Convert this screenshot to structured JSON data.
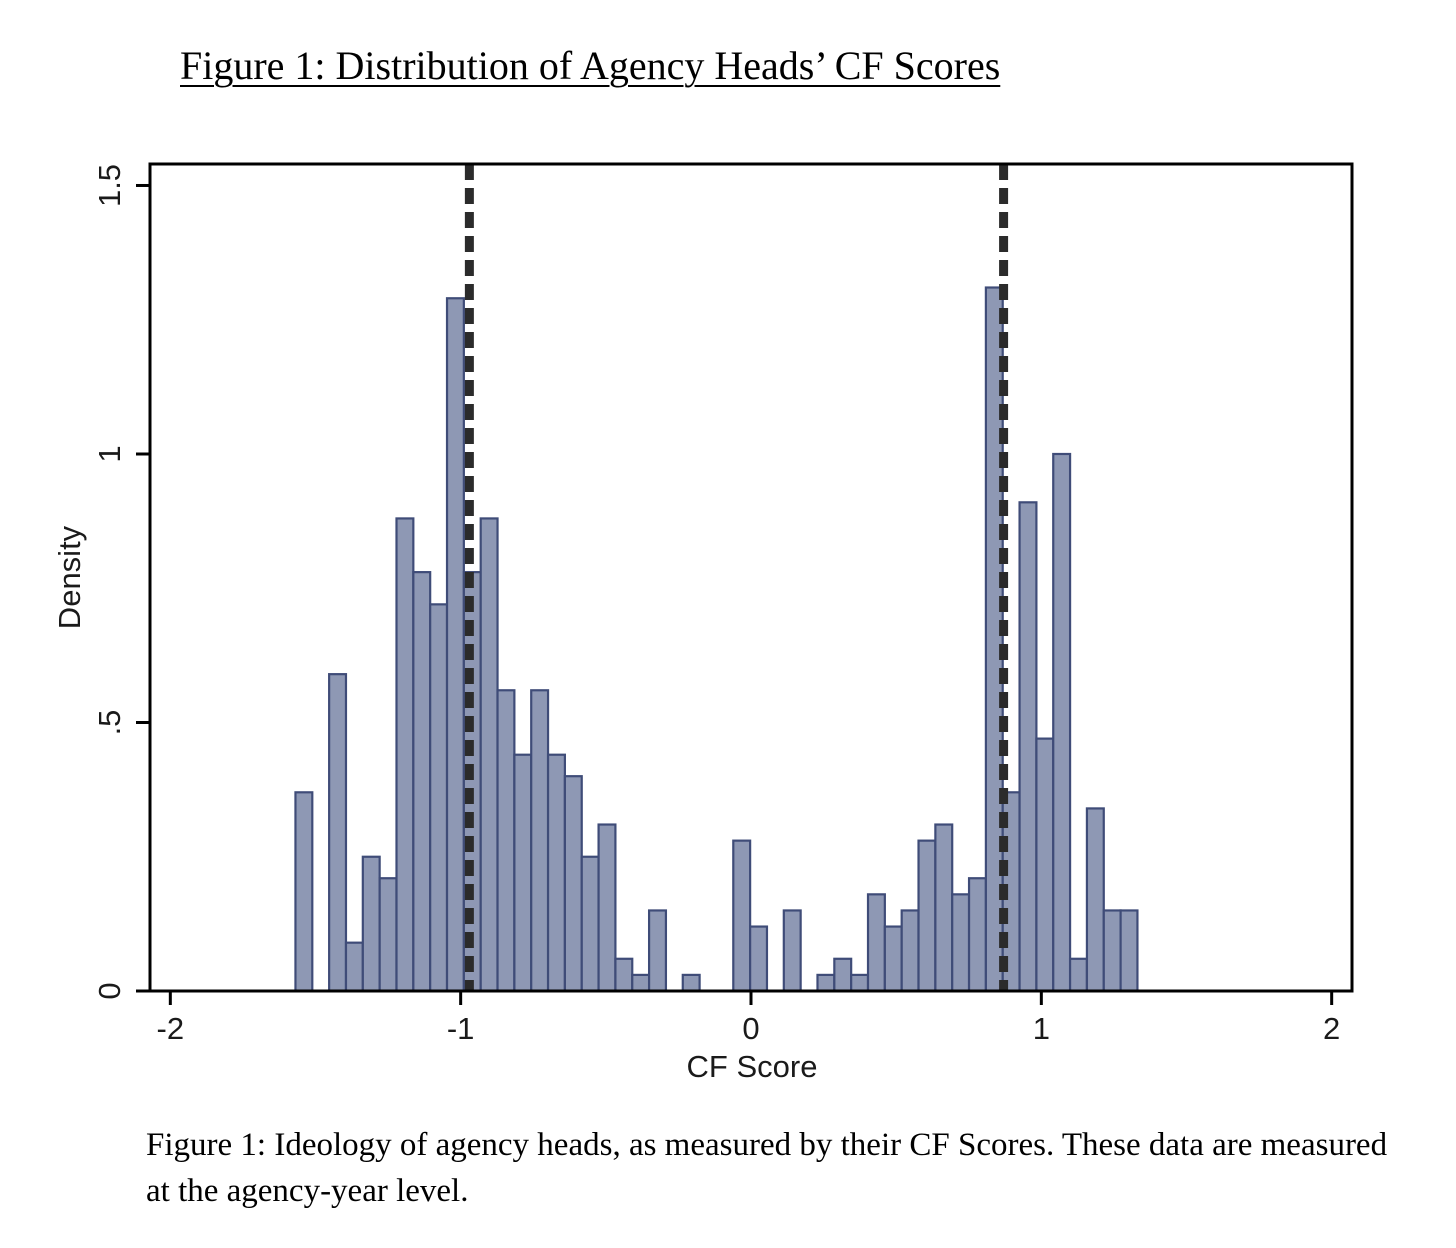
{
  "figure": {
    "title": "Figure 1: Distribution of Agency Heads’ CF Scores",
    "caption": "Figure 1: Ideology of agency heads, as measured by their CF Scores. These data are measured at the agency-year level."
  },
  "chart_data": {
    "type": "bar",
    "subtype": "histogram",
    "xlabel": "CF Score",
    "ylabel": "Density",
    "xlim": [
      -2.07,
      2.07
    ],
    "ylim": [
      0,
      1.54
    ],
    "x_ticks": [
      {
        "value": -2,
        "label": "-2"
      },
      {
        "value": -1,
        "label": "-1"
      },
      {
        "value": 0,
        "label": "0"
      },
      {
        "value": 1,
        "label": "1"
      },
      {
        "value": 2,
        "label": "2"
      }
    ],
    "y_ticks": [
      {
        "value": 0,
        "label": "0"
      },
      {
        "value": 0.5,
        "label": ".5"
      },
      {
        "value": 1,
        "label": "1"
      },
      {
        "value": 1.5,
        "label": "1.5"
      }
    ],
    "grid": false,
    "legend": "none",
    "bar_color": "#8e98b4",
    "bar_edge_color": "#3f4c78",
    "bin_width": 0.058,
    "bins": [
      {
        "x0": -1.569,
        "value": 0.37
      },
      {
        "x0": -1.453,
        "value": 0.59
      },
      {
        "x0": -1.395,
        "value": 0.09
      },
      {
        "x0": -1.337,
        "value": 0.25
      },
      {
        "x0": -1.279,
        "value": 0.21
      },
      {
        "x0": -1.221,
        "value": 0.88
      },
      {
        "x0": -1.163,
        "value": 0.78
      },
      {
        "x0": -1.105,
        "value": 0.72
      },
      {
        "x0": -1.047,
        "value": 1.29
      },
      {
        "x0": -0.989,
        "value": 0.78
      },
      {
        "x0": -0.931,
        "value": 0.88
      },
      {
        "x0": -0.873,
        "value": 0.56
      },
      {
        "x0": -0.815,
        "value": 0.44
      },
      {
        "x0": -0.757,
        "value": 0.56
      },
      {
        "x0": -0.699,
        "value": 0.44
      },
      {
        "x0": -0.641,
        "value": 0.4
      },
      {
        "x0": -0.583,
        "value": 0.25
      },
      {
        "x0": -0.525,
        "value": 0.31
      },
      {
        "x0": -0.467,
        "value": 0.06
      },
      {
        "x0": -0.409,
        "value": 0.03
      },
      {
        "x0": -0.351,
        "value": 0.15
      },
      {
        "x0": -0.235,
        "value": 0.03
      },
      {
        "x0": -0.061,
        "value": 0.28
      },
      {
        "x0": -0.003,
        "value": 0.12
      },
      {
        "x0": 0.113,
        "value": 0.15
      },
      {
        "x0": 0.229,
        "value": 0.03
      },
      {
        "x0": 0.287,
        "value": 0.06
      },
      {
        "x0": 0.345,
        "value": 0.03
      },
      {
        "x0": 0.403,
        "value": 0.18
      },
      {
        "x0": 0.461,
        "value": 0.12
      },
      {
        "x0": 0.519,
        "value": 0.15
      },
      {
        "x0": 0.577,
        "value": 0.28
      },
      {
        "x0": 0.635,
        "value": 0.31
      },
      {
        "x0": 0.693,
        "value": 0.18
      },
      {
        "x0": 0.751,
        "value": 0.21
      },
      {
        "x0": 0.809,
        "value": 1.31
      },
      {
        "x0": 0.867,
        "value": 0.37
      },
      {
        "x0": 0.925,
        "value": 0.91
      },
      {
        "x0": 0.983,
        "value": 0.47
      },
      {
        "x0": 1.041,
        "value": 1.0
      },
      {
        "x0": 1.099,
        "value": 0.06
      },
      {
        "x0": 1.157,
        "value": 0.34
      },
      {
        "x0": 1.215,
        "value": 0.15
      },
      {
        "x0": 1.273,
        "value": 0.15
      }
    ],
    "reference_lines": [
      {
        "axis": "x",
        "value": -0.97,
        "style": "dashed"
      },
      {
        "axis": "x",
        "value": 0.87,
        "style": "dashed"
      }
    ]
  }
}
